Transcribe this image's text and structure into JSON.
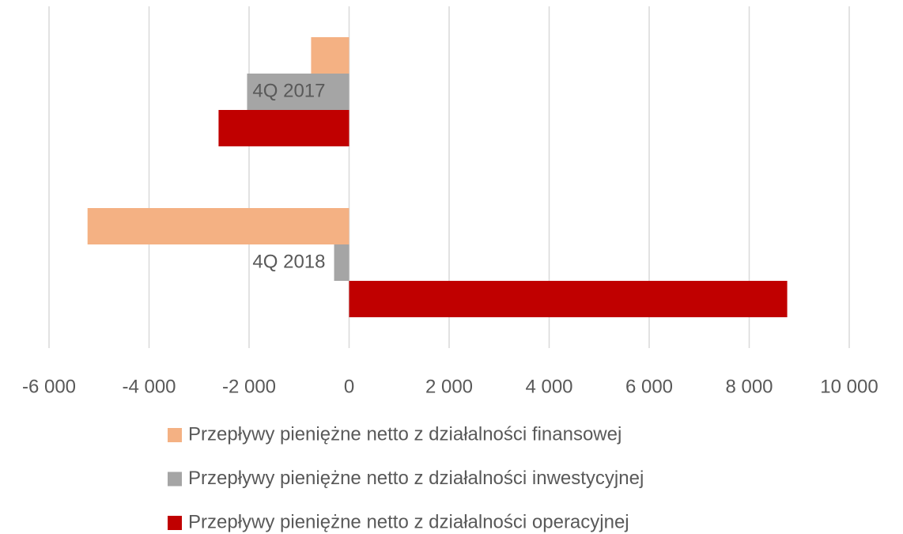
{
  "chart_data": {
    "type": "hbar",
    "categories": [
      "4Q 2017",
      "4Q 2018"
    ],
    "series": [
      {
        "name": "Przepływy pieniężne netto z działalności finansowej",
        "color": "#F4B183",
        "values": [
          -760,
          -5230
        ]
      },
      {
        "name": "Przepływy pieniężne netto z działalności inwestycyjnej",
        "color": "#A5A5A5",
        "values": [
          -2040,
          -300
        ]
      },
      {
        "name": "Przepływy pieniężne netto z działalności operacyjnej",
        "color": "#C00000",
        "values": [
          -2610,
          8760
        ]
      }
    ],
    "xlim": [
      -6000,
      10000
    ],
    "xticks": [
      {
        "value": -6000,
        "label": "-6 000"
      },
      {
        "value": -4000,
        "label": "-4 000"
      },
      {
        "value": -2000,
        "label": "-2 000"
      },
      0,
      {
        "value": 2000,
        "label": "2 000"
      },
      {
        "value": 4000,
        "label": "4 000"
      },
      {
        "value": 6000,
        "label": "6 000"
      },
      {
        "value": 8000,
        "label": "8 000"
      },
      {
        "value": 10000,
        "label": "10 000"
      }
    ],
    "grid": true,
    "legend": "bottom"
  }
}
